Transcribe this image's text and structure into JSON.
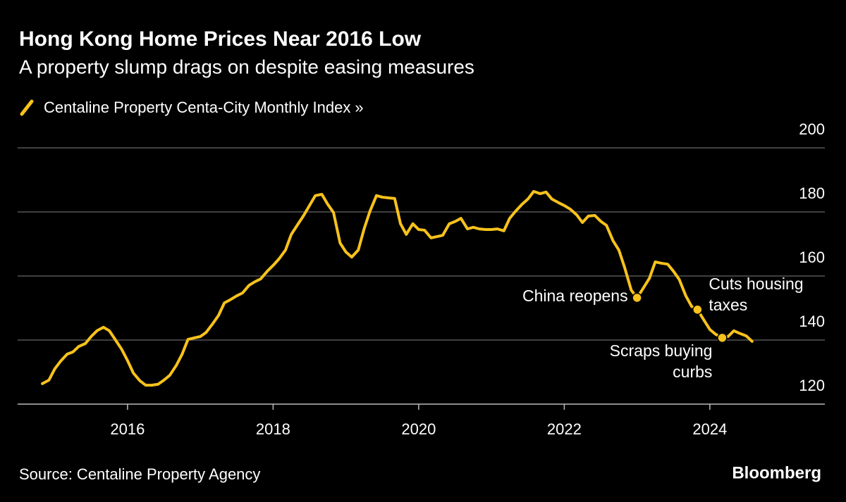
{
  "chart_data": {
    "type": "line",
    "title": "Hong Kong Home Prices Near 2016 Low",
    "subtitle": "A property slump drags on despite easing measures",
    "source": "Source: Centaline Property Agency",
    "brand": "Bloomberg",
    "x": [
      2014.83,
      2014.92,
      2015.0,
      2015.08,
      2015.17,
      2015.25,
      2015.33,
      2015.42,
      2015.5,
      2015.58,
      2015.67,
      2015.75,
      2015.83,
      2015.92,
      2016.0,
      2016.08,
      2016.17,
      2016.25,
      2016.33,
      2016.42,
      2016.5,
      2016.58,
      2016.67,
      2016.75,
      2016.83,
      2016.92,
      2017.0,
      2017.08,
      2017.17,
      2017.25,
      2017.33,
      2017.42,
      2017.5,
      2017.58,
      2017.67,
      2017.75,
      2017.83,
      2017.92,
      2018.0,
      2018.08,
      2018.17,
      2018.25,
      2018.33,
      2018.42,
      2018.5,
      2018.58,
      2018.67,
      2018.75,
      2018.83,
      2018.92,
      2019.0,
      2019.08,
      2019.17,
      2019.25,
      2019.33,
      2019.42,
      2019.5,
      2019.58,
      2019.67,
      2019.75,
      2019.83,
      2019.92,
      2020.0,
      2020.08,
      2020.17,
      2020.25,
      2020.33,
      2020.42,
      2020.5,
      2020.58,
      2020.67,
      2020.75,
      2020.83,
      2020.92,
      2021.0,
      2021.08,
      2021.17,
      2021.25,
      2021.33,
      2021.42,
      2021.5,
      2021.58,
      2021.67,
      2021.75,
      2021.83,
      2021.92,
      2022.0,
      2022.08,
      2022.17,
      2022.25,
      2022.33,
      2022.42,
      2022.5,
      2022.58,
      2022.67,
      2022.75,
      2022.83,
      2022.92,
      2023.0,
      2023.08,
      2023.17,
      2023.25,
      2023.33,
      2023.42,
      2023.5,
      2023.58,
      2023.67,
      2023.75,
      2023.83,
      2023.92,
      2024.0,
      2024.08,
      2024.17,
      2024.25,
      2024.33,
      2024.42,
      2024.5,
      2024.58
    ],
    "series": [
      {
        "name": "Centaline Property Centa-City Monthly Index »",
        "color": "#f7c21b",
        "values": [
          126.4,
          127.5,
          131.0,
          133.4,
          135.6,
          136.3,
          138.0,
          138.9,
          141.1,
          142.9,
          144.0,
          142.9,
          140.2,
          137.1,
          133.6,
          129.7,
          127.3,
          125.9,
          125.9,
          126.2,
          127.5,
          129.0,
          132.1,
          135.6,
          140.2,
          140.7,
          141.1,
          142.4,
          145.1,
          147.7,
          151.6,
          152.7,
          153.8,
          154.7,
          157.1,
          158.2,
          159.1,
          161.5,
          163.3,
          165.3,
          168.1,
          173.0,
          175.8,
          178.9,
          182.0,
          185.1,
          185.5,
          182.4,
          179.8,
          170.3,
          167.5,
          165.9,
          168.1,
          174.7,
          180.2,
          185.1,
          184.6,
          184.4,
          184.2,
          176.3,
          173.0,
          176.3,
          174.5,
          174.3,
          171.9,
          172.3,
          172.7,
          176.3,
          177.0,
          178.0,
          174.7,
          175.2,
          174.7,
          174.5,
          174.5,
          174.7,
          174.1,
          178.0,
          180.2,
          182.4,
          184.0,
          186.4,
          185.7,
          186.2,
          184.0,
          182.9,
          182.0,
          180.9,
          179.1,
          176.7,
          178.7,
          178.9,
          177.1,
          175.8,
          171.0,
          168.1,
          162.6,
          155.6,
          153.2,
          156.0,
          159.3,
          164.4,
          164.0,
          163.7,
          161.5,
          158.9,
          153.8,
          150.5,
          149.5,
          146.2,
          143.3,
          141.8,
          140.7,
          141.1,
          142.9,
          142.0,
          141.3,
          139.6
        ]
      }
    ],
    "annotations": [
      {
        "text": [
          "China reopens"
        ],
        "x": 2023.0,
        "y": 153.2
      },
      {
        "text": [
          "Cuts housing",
          "taxes"
        ],
        "x": 2023.83,
        "y": 149.5
      },
      {
        "text": [
          "Scraps buying",
          "curbs"
        ],
        "x": 2024.17,
        "y": 140.7
      }
    ],
    "xlim": [
      2014.49,
      2025.58
    ],
    "ylim": [
      120,
      200
    ],
    "xticks": [
      2016,
      2018,
      2020,
      2022,
      2024
    ],
    "yticks": [
      120,
      140,
      160,
      180,
      200
    ],
    "grid": true
  }
}
